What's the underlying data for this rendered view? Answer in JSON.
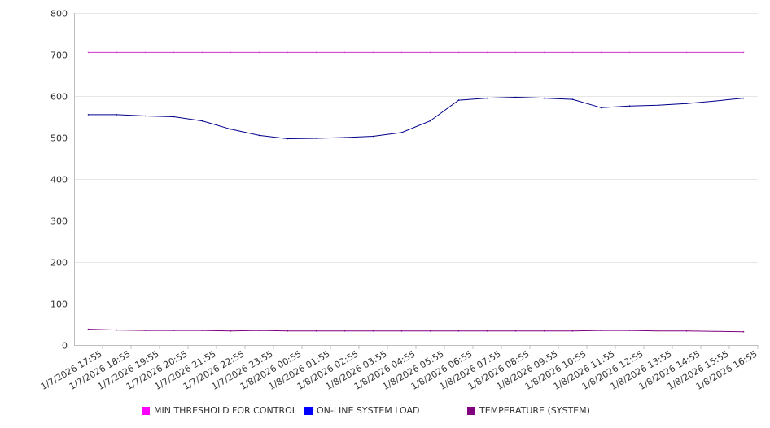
{
  "chart_data": {
    "type": "line",
    "title": "",
    "xlabel": "",
    "ylabel": "",
    "ylim": [
      0,
      800
    ],
    "y_ticks": [
      0,
      100,
      200,
      300,
      400,
      500,
      600,
      700,
      800
    ],
    "grid": "horizontal",
    "legend_position": "bottom",
    "categories": [
      "1/7/2026 17:55",
      "1/7/2026 18:55",
      "1/7/2026 19:55",
      "1/7/2026 20:55",
      "1/7/2026 21:55",
      "1/7/2026 22:55",
      "1/7/2026 23:55",
      "1/8/2026 00:55",
      "1/8/2026 01:55",
      "1/8/2026 02:55",
      "1/8/2026 03:55",
      "1/8/2026 04:55",
      "1/8/2026 05:55",
      "1/8/2026 06:55",
      "1/8/2026 07:55",
      "1/8/2026 08:55",
      "1/8/2026 09:55",
      "1/8/2026 10:55",
      "1/8/2026 11:55",
      "1/8/2026 12:55",
      "1/8/2026 13:55",
      "1/8/2026 14:55",
      "1/8/2026 15:55",
      "1/8/2026 16:55"
    ],
    "series": [
      {
        "name": "MIN THRESHOLD FOR CONTROL",
        "color": "#cc33cc",
        "legend_color": "#ff00ff",
        "values": [
          705,
          705,
          705,
          705,
          705,
          705,
          705,
          705,
          705,
          705,
          705,
          705,
          705,
          705,
          705,
          705,
          705,
          705,
          705,
          705,
          705,
          705,
          705,
          705
        ]
      },
      {
        "name": "ON-LINE SYSTEM LOAD",
        "color": "#00008b",
        "legend_color": "#0000ff",
        "values": [
          555,
          555,
          552,
          550,
          540,
          520,
          505,
          497,
          498,
          500,
          503,
          512,
          540,
          590,
          595,
          597,
          595,
          592,
          572,
          576,
          578,
          582,
          588,
          595
        ]
      },
      {
        "name": "TEMPERATURE (SYSTEM)",
        "color": "#800080",
        "legend_color": "#800080",
        "values": [
          38,
          36,
          35,
          35,
          35,
          34,
          35,
          34,
          34,
          34,
          34,
          34,
          34,
          34,
          34,
          34,
          34,
          34,
          35,
          35,
          34,
          34,
          33,
          32
        ]
      }
    ]
  }
}
